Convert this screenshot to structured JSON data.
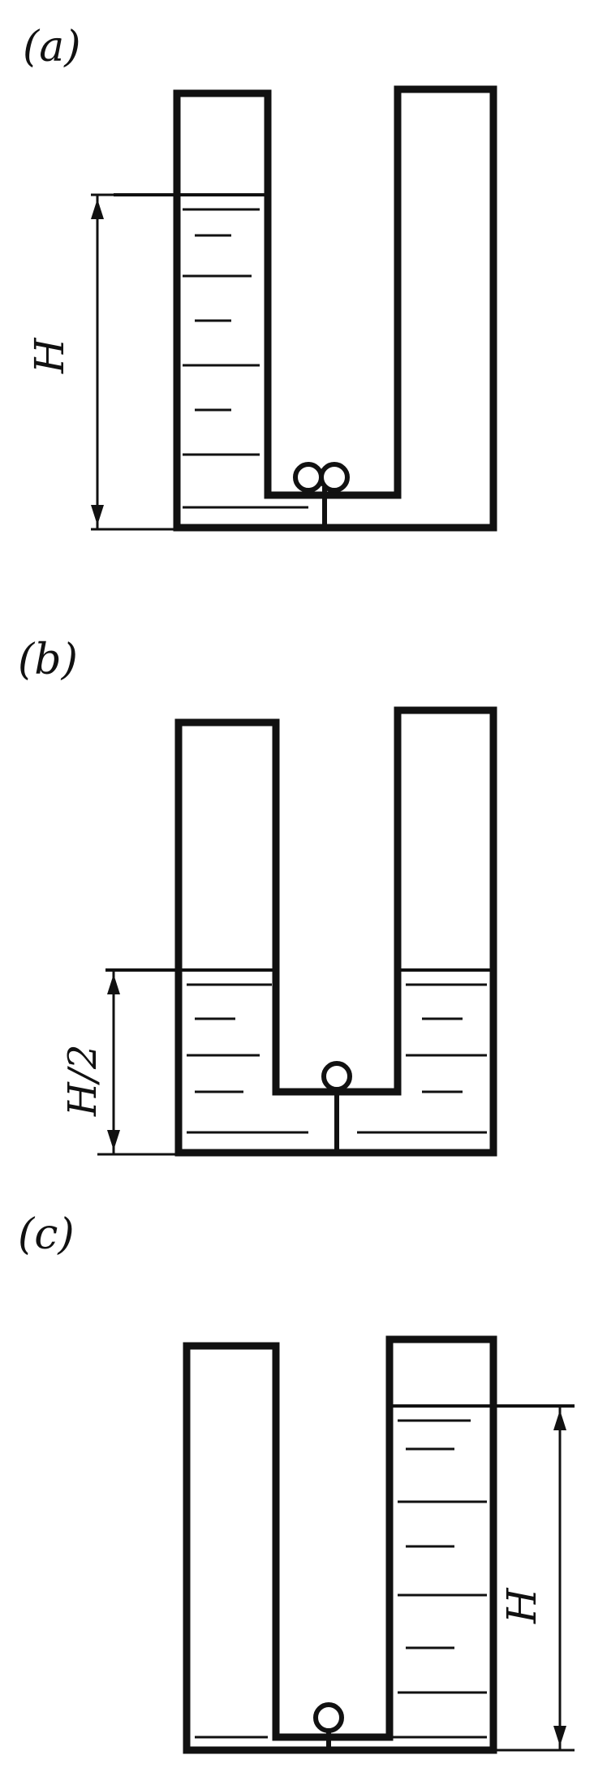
{
  "panels": [
    {
      "id": "a",
      "label": "(a)",
      "height_label": "H"
    },
    {
      "id": "b",
      "label": "(b)",
      "height_label": "H/2"
    },
    {
      "id": "c",
      "label": "(c)",
      "height_label": "H"
    }
  ]
}
